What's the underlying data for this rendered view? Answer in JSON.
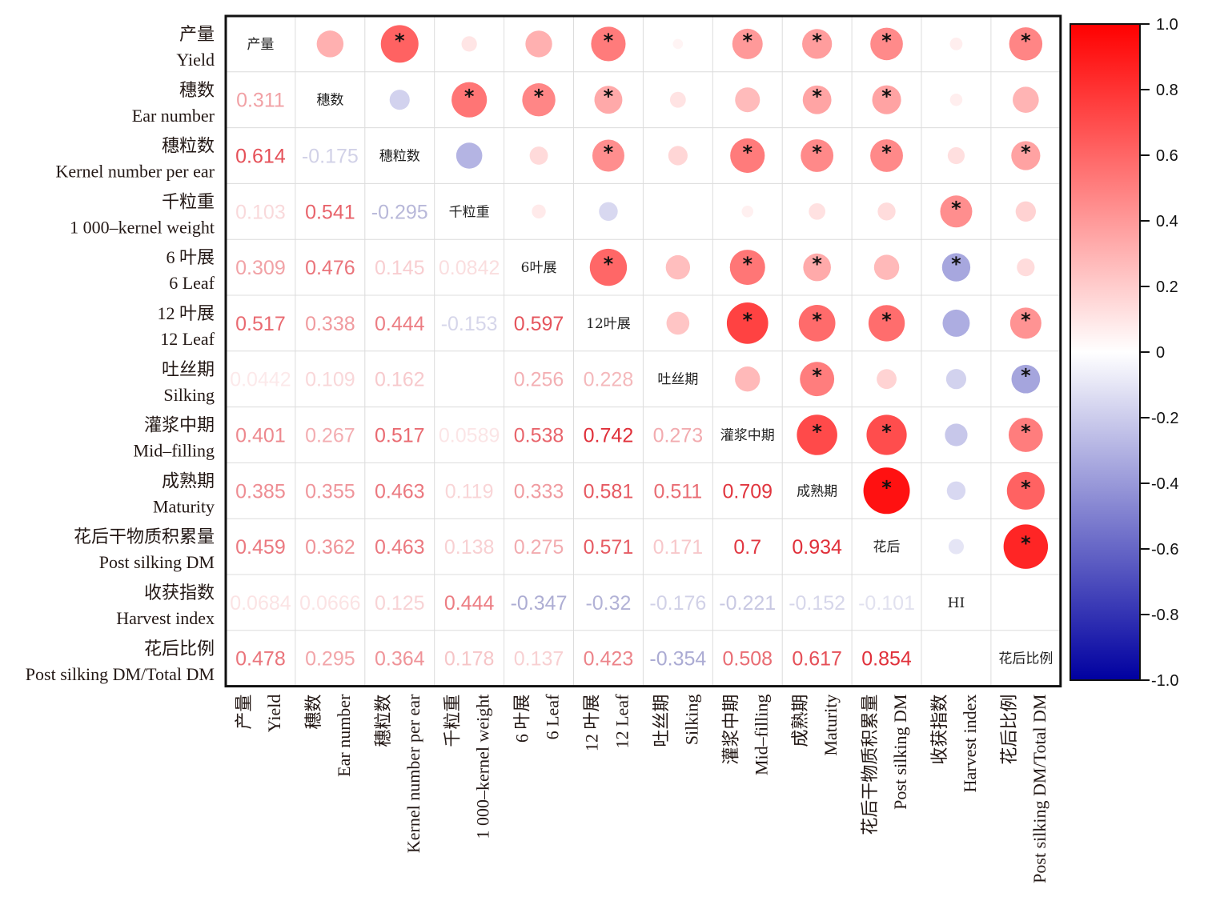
{
  "chart_data": {
    "type": "heatmap",
    "subtype": "correlation-matrix",
    "title": "",
    "variables": [
      {
        "zh": "产量",
        "en": "Yield",
        "diag": "产量"
      },
      {
        "zh": "穗数",
        "en": "Ear number",
        "diag": "穗数"
      },
      {
        "zh": "穗粒数",
        "en": "Kernel number per ear",
        "diag": "穗粒数"
      },
      {
        "zh": "千粒重",
        "en": "1 000–kernel weight",
        "diag": "千粒重"
      },
      {
        "zh": "6 叶展",
        "en": "6 Leaf",
        "diag": "6叶展"
      },
      {
        "zh": "12 叶展",
        "en": "12 Leaf",
        "diag": "12叶展"
      },
      {
        "zh": "吐丝期",
        "en": "Silking",
        "diag": "吐丝期"
      },
      {
        "zh": "灌浆中期",
        "en": "Mid–filling",
        "diag": "灌浆中期"
      },
      {
        "zh": "成熟期",
        "en": "Maturity",
        "diag": "成熟期"
      },
      {
        "zh": "花后干物质积累量",
        "en": "Post silking DM",
        "diag": "花后"
      },
      {
        "zh": "收获指数",
        "en": "Harvest index",
        "diag": "HI"
      },
      {
        "zh": "花后比例",
        "en": "Post silking DM/Total DM",
        "diag": "花后比例"
      }
    ],
    "lower_triangle_labels": [
      [],
      [
        "0.311"
      ],
      [
        "0.614",
        "-0.175"
      ],
      [
        "0.103",
        "0.541",
        "-0.295"
      ],
      [
        "0.309",
        "0.476",
        "0.145",
        "0.0842"
      ],
      [
        "0.517",
        "0.338",
        "0.444",
        "-0.153",
        "0.597"
      ],
      [
        "0.0442",
        "0.109",
        "0.162",
        "",
        "0.256",
        "0.228"
      ],
      [
        "0.401",
        "0.267",
        "0.517",
        "0.0589",
        "0.538",
        "0.742",
        "0.273"
      ],
      [
        "0.385",
        "0.355",
        "0.463",
        "0.119",
        "0.333",
        "0.581",
        "0.511",
        "0.709"
      ],
      [
        "0.459",
        "0.362",
        "0.463",
        "0.138",
        "0.275",
        "0.571",
        "0.171",
        "0.7",
        "0.934"
      ],
      [
        "0.0684",
        "0.0666",
        "0.125",
        "0.444",
        "-0.347",
        "-0.32",
        "-0.176",
        "-0.221",
        "-0.152",
        "-0.101"
      ],
      [
        "0.478",
        "0.295",
        "0.364",
        "0.178",
        "0.137",
        "0.423",
        "-0.354",
        "0.508",
        "0.617",
        "0.854",
        ""
      ]
    ],
    "lower_triangle_values": [
      [],
      [
        0.311
      ],
      [
        0.614,
        -0.175
      ],
      [
        0.103,
        0.541,
        -0.295
      ],
      [
        0.309,
        0.476,
        0.145,
        0.0842
      ],
      [
        0.517,
        0.338,
        0.444,
        -0.153,
        0.597
      ],
      [
        0.0442,
        0.109,
        0.162,
        0.0,
        0.256,
        0.228
      ],
      [
        0.401,
        0.267,
        0.517,
        0.0589,
        0.538,
        0.742,
        0.273
      ],
      [
        0.385,
        0.355,
        0.463,
        0.119,
        0.333,
        0.581,
        0.511,
        0.709
      ],
      [
        0.459,
        0.362,
        0.463,
        0.138,
        0.275,
        0.571,
        0.171,
        0.7,
        0.934
      ],
      [
        0.0684,
        0.0666,
        0.125,
        0.444,
        -0.347,
        -0.32,
        -0.176,
        -0.221,
        -0.152,
        -0.101
      ],
      [
        0.478,
        0.295,
        0.364,
        0.178,
        0.137,
        0.423,
        -0.354,
        0.508,
        0.617,
        0.854,
        0.0
      ]
    ],
    "significant_pairs": [
      [
        0,
        2
      ],
      [
        0,
        5
      ],
      [
        0,
        7
      ],
      [
        0,
        8
      ],
      [
        0,
        9
      ],
      [
        0,
        11
      ],
      [
        1,
        3
      ],
      [
        1,
        4
      ],
      [
        1,
        5
      ],
      [
        1,
        8
      ],
      [
        1,
        9
      ],
      [
        2,
        5
      ],
      [
        2,
        7
      ],
      [
        2,
        8
      ],
      [
        2,
        9
      ],
      [
        2,
        11
      ],
      [
        3,
        10
      ],
      [
        4,
        5
      ],
      [
        4,
        7
      ],
      [
        4,
        8
      ],
      [
        4,
        10
      ],
      [
        5,
        7
      ],
      [
        5,
        8
      ],
      [
        5,
        9
      ],
      [
        5,
        11
      ],
      [
        6,
        8
      ],
      [
        6,
        11
      ],
      [
        7,
        8
      ],
      [
        7,
        9
      ],
      [
        7,
        11
      ],
      [
        8,
        9
      ],
      [
        8,
        11
      ],
      [
        9,
        11
      ]
    ],
    "significance_marker": "*",
    "upper_triangle_encoding": "circle size and color proportional to correlation",
    "colorbar": {
      "range": [
        -1.0,
        1.0
      ],
      "ticks": [
        "1.0",
        "0.8",
        "0.6",
        "0.4",
        "0.2",
        "0",
        "-0.2",
        "-0.4",
        "-0.6",
        "-0.8",
        "-1.0"
      ],
      "tick_values": [
        1.0,
        0.8,
        0.6,
        0.4,
        0.2,
        0,
        -0.2,
        -0.4,
        -0.6,
        -0.8,
        -1.0
      ],
      "colors": {
        "negative": "#0000a0",
        "zero": "#ffffff",
        "positive": "#ff0000"
      },
      "placement": "right"
    },
    "xlabel": "",
    "ylabel": "",
    "grid": true
  }
}
